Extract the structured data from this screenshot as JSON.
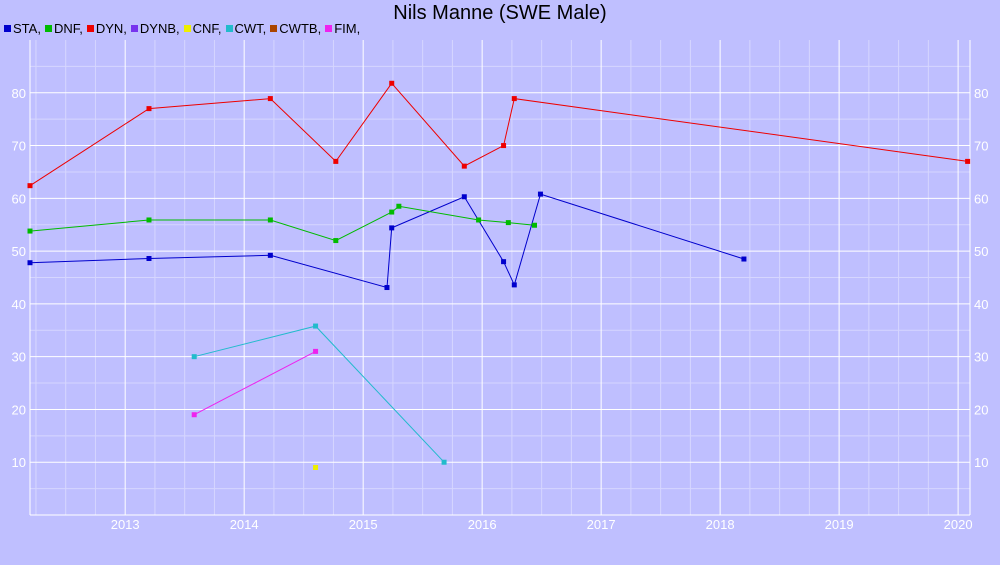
{
  "chart_data": {
    "type": "line",
    "title": "Nils Manne (SWE Male)",
    "xlabel": "",
    "ylabel": "",
    "xlim": [
      2012.2,
      2020.1
    ],
    "ylim": [
      0,
      90
    ],
    "grid": true,
    "legend_position": "top-left",
    "x_ticks": [
      "2013",
      "2014",
      "2015",
      "2016",
      "2017",
      "2018",
      "2019",
      "2020"
    ],
    "y_ticks": [
      "10",
      "20",
      "30",
      "40",
      "50",
      "60",
      "70",
      "80"
    ],
    "legend": [
      {
        "label": "STA,",
        "color": "#0000cc"
      },
      {
        "label": "DNF,",
        "color": "#00bb00"
      },
      {
        "label": "DYN,",
        "color": "#ee0000"
      },
      {
        "label": "DYNB,",
        "color": "#7733ee"
      },
      {
        "label": "CNF,",
        "color": "#eeee00"
      },
      {
        "label": "CWT,",
        "color": "#22bbcc"
      },
      {
        "label": "CWTB,",
        "color": "#aa4400"
      },
      {
        "label": "FIM,",
        "color": "#ee22ee"
      }
    ],
    "series": [
      {
        "name": "STA",
        "color": "#0000cc",
        "x": [
          2012.2,
          2013.2,
          2014.22,
          2015.2,
          2015.24,
          2015.85,
          2016.18,
          2016.27,
          2016.49,
          2018.2
        ],
        "y": [
          47.8,
          48.6,
          49.2,
          43.1,
          54.4,
          60.3,
          48.0,
          43.6,
          60.8,
          48.5
        ]
      },
      {
        "name": "DNF",
        "color": "#00bb00",
        "x": [
          2012.2,
          2013.2,
          2014.22,
          2014.77,
          2015.24,
          2015.3,
          2015.97,
          2016.22,
          2016.44
        ],
        "y": [
          53.8,
          55.9,
          55.9,
          52.0,
          57.4,
          58.5,
          55.9,
          55.4,
          54.9
        ]
      },
      {
        "name": "DYN",
        "color": "#ee0000",
        "x": [
          2012.2,
          2013.2,
          2014.22,
          2014.77,
          2015.24,
          2015.85,
          2016.18,
          2016.27,
          2020.08
        ],
        "y": [
          62.4,
          77.0,
          78.9,
          67.0,
          81.8,
          66.1,
          70.0,
          78.9,
          67.0
        ]
      },
      {
        "name": "CNF",
        "color": "#eeee00",
        "x": [
          2014.6
        ],
        "y": [
          9.0
        ]
      },
      {
        "name": "CWT",
        "color": "#22bbcc",
        "x": [
          2013.58,
          2014.6,
          2015.68
        ],
        "y": [
          30.0,
          35.8,
          10.0
        ]
      },
      {
        "name": "FIM",
        "color": "#ee22ee",
        "x": [
          2013.58,
          2014.6
        ],
        "y": [
          19.0,
          31.0
        ]
      }
    ]
  }
}
